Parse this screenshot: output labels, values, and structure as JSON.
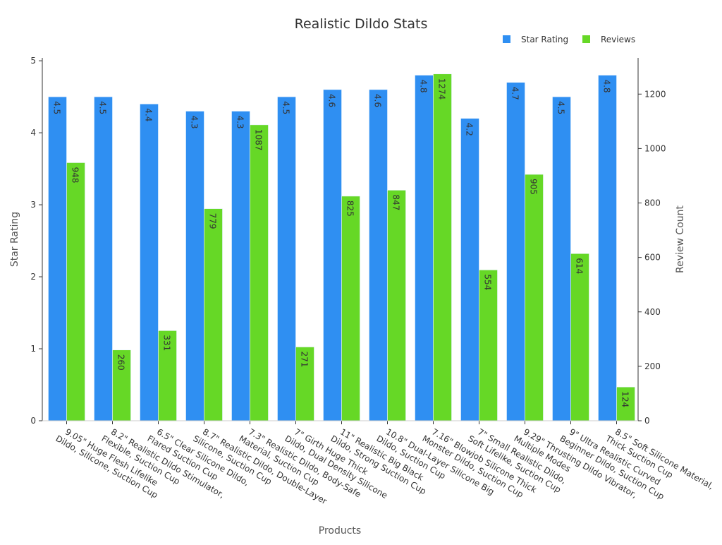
{
  "chart_data": {
    "type": "bar",
    "title": "Realistic Dildo Stats",
    "xlabel": "Products",
    "ylabel": "Star Rating",
    "ylabel_right": "Review Count",
    "ylim": [
      0,
      5.04
    ],
    "ylim_right": [
      0,
      1333
    ],
    "yticks": [
      0,
      1,
      2,
      3,
      4,
      5
    ],
    "yticks_right": [
      0,
      200,
      400,
      600,
      800,
      1000,
      1200
    ],
    "legend_position": "top-right",
    "grid": false,
    "categories": [
      [
        "9.05\" Huge Flesh Lifelike",
        "Dildo, Silicone, Suction Cup"
      ],
      [
        "8.2\" Realistic Dildo Stimulator,",
        "Flexible, Suction Cup"
      ],
      [
        "6.5\" Clear Silicone Dildo,",
        "Flared Suction Cup"
      ],
      [
        "8.7\" Realistic Dildo, Double-Layer",
        "Silicone, Suction Cup"
      ],
      [
        "7.3\" Realistic Dildo, Body-Safe",
        "Material, Suction Cup"
      ],
      [
        "7\" Girth Huge Thick",
        "Dildo, Dual Density Silicone"
      ],
      [
        "11\" Realistic Big Black",
        "Dildo, Strong Suction Cup"
      ],
      [
        "10.8\" Dual-Layer Silicone Big",
        "Dildo, Suction Cup"
      ],
      [
        "7.16\" Blowjob Silicone Thick",
        "Monster Dildo, Suction Cup"
      ],
      [
        "7\" Small Realistic Dildo,",
        "Soft Lifelike, Suction Cup"
      ],
      [
        "9.29\" Thrusting Dildo Vibrator,",
        "Multiple Modes"
      ],
      [
        "9\" Ultra Realistic Curved",
        "Beginner Dildo, Suction Cup"
      ],
      [
        "8.5\" Soft Silicone Material,",
        "Thick Suction Cup"
      ]
    ],
    "series": [
      {
        "name": "Star Rating",
        "axis": "left",
        "color": "#2f8ff2",
        "values": [
          4.5,
          4.5,
          4.4,
          4.3,
          4.3,
          4.5,
          4.6,
          4.6,
          4.8,
          4.2,
          4.7,
          4.5,
          4.8
        ]
      },
      {
        "name": "Reviews",
        "axis": "right",
        "color": "#66d826",
        "values": [
          948,
          260,
          331,
          779,
          1087,
          271,
          825,
          847,
          1274,
          554,
          905,
          614,
          124
        ]
      }
    ]
  }
}
